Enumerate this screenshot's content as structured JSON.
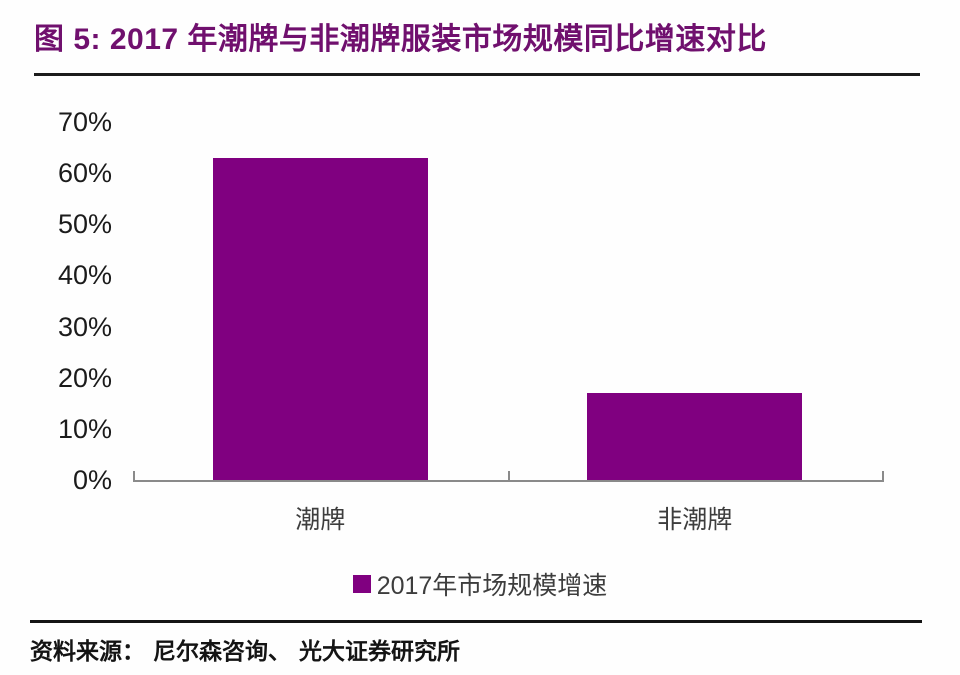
{
  "figure": {
    "title": "图 5: 2017 年潮牌与非潮牌服装市场规模同比增速对比",
    "source": "资料来源： 尼尔森咨询、 光大证券研究所"
  },
  "legend": {
    "label": "2017年市场规模增速",
    "swatch_icon": "filled-square"
  },
  "colors": {
    "title": "#70106E",
    "bar": "#800080",
    "axis": "#8a8a8a",
    "rule": "#1c1c1c"
  },
  "chart_data": {
    "type": "bar",
    "title": "2017 年潮牌与非潮牌服装市场规模同比增速对比",
    "categories": [
      "潮牌",
      "非潮牌"
    ],
    "series": [
      {
        "name": "2017年市场规模增速",
        "values": [
          63,
          17
        ]
      }
    ],
    "value_unit": "%",
    "xlabel": "",
    "ylabel": "",
    "ylim": [
      0,
      70
    ],
    "ytick_values": [
      70,
      60,
      50,
      40,
      30,
      20,
      10,
      0
    ],
    "ytick_labels": [
      "70%",
      "60%",
      "50%",
      "40%",
      "30%",
      "20%",
      "10%",
      "0%"
    ],
    "grid": false,
    "legend_position": "bottom"
  }
}
